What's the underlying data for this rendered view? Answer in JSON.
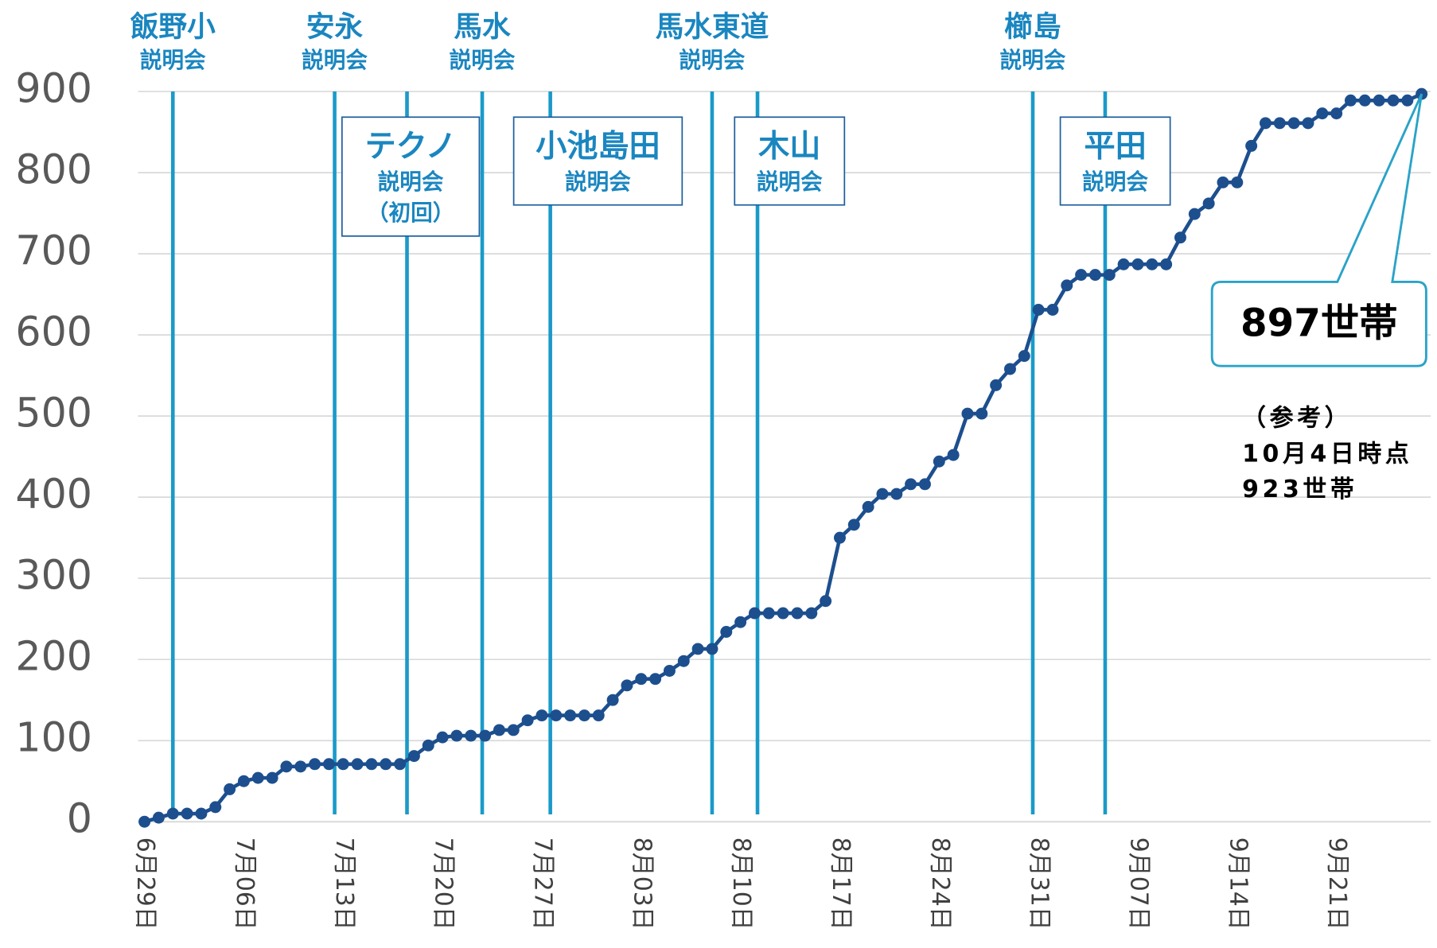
{
  "chart_data": {
    "type": "line",
    "categories": [
      "6月29日",
      null,
      null,
      null,
      null,
      null,
      null,
      "7月06日",
      null,
      null,
      null,
      null,
      null,
      null,
      "7月13日",
      null,
      null,
      null,
      null,
      null,
      null,
      "7月20日",
      null,
      null,
      null,
      null,
      null,
      null,
      "7月27日",
      null,
      null,
      null,
      null,
      null,
      null,
      "8月03日",
      null,
      null,
      null,
      null,
      null,
      null,
      "8月10日",
      null,
      null,
      null,
      null,
      null,
      null,
      "8月17日",
      null,
      null,
      null,
      null,
      null,
      null,
      "8月24日",
      null,
      null,
      null,
      null,
      null,
      null,
      "8月31日",
      null,
      null,
      null,
      null,
      null,
      null,
      "9月07日",
      null,
      null,
      null,
      null,
      null,
      null,
      "9月14日",
      null,
      null,
      null,
      null,
      null,
      null,
      "9月21日",
      null,
      null,
      null,
      null,
      null,
      null
    ],
    "series": [
      {
        "color": "#1d4f8e",
        "values": [
          0,
          5,
          10,
          10,
          10,
          18,
          40,
          50,
          54,
          54,
          68,
          68,
          71,
          71,
          71,
          71,
          71,
          71,
          71,
          81,
          94,
          104,
          106,
          106,
          106,
          113,
          113,
          125,
          131,
          131,
          131,
          131,
          131,
          150,
          168,
          176,
          176,
          186,
          198,
          213,
          213,
          234,
          246,
          257,
          257,
          257,
          257,
          257,
          272,
          350,
          366,
          388,
          404,
          404,
          416,
          416,
          444,
          452,
          503,
          503,
          538,
          558,
          574,
          631,
          631,
          661,
          674,
          674,
          674,
          687,
          687,
          687,
          687,
          720,
          749,
          762,
          788,
          788,
          833,
          861,
          861,
          861,
          861,
          873,
          873,
          889,
          889,
          889,
          889,
          889,
          897
        ]
      }
    ],
    "ylim": [
      0,
      900
    ],
    "yticks": [
      0,
      100,
      200,
      300,
      400,
      500,
      600,
      700,
      800,
      900
    ],
    "grid": true,
    "events": [
      {
        "lines": [
          "飯野小",
          "説明会"
        ],
        "at": 2,
        "style": "top"
      },
      {
        "lines": [
          "安永",
          "説明会"
        ],
        "at": 13.4,
        "style": "top"
      },
      {
        "lines": [
          "テクノ",
          "説明会",
          "（初回）"
        ],
        "at": 18.5,
        "style": "boxed"
      },
      {
        "lines": [
          "馬水",
          "説明会"
        ],
        "at": 23.8,
        "style": "top"
      },
      {
        "lines": [
          "小池島田",
          "説明会"
        ],
        "at": 28.6,
        "style": "boxed"
      },
      {
        "lines": [
          "馬水東道",
          "説明会"
        ],
        "at": 40,
        "style": "top"
      },
      {
        "lines": [
          "木山",
          "説明会"
        ],
        "at": 43.2,
        "style": "boxed"
      },
      {
        "lines": [
          "櫛島",
          "説明会"
        ],
        "at": 62.6,
        "style": "top"
      },
      {
        "lines": [
          "平田",
          "説明会"
        ],
        "at": 67.7,
        "style": "boxed"
      }
    ],
    "callout": "897世帯",
    "note": [
      "（参考）",
      "10月4日時点",
      "923世帯"
    ]
  }
}
